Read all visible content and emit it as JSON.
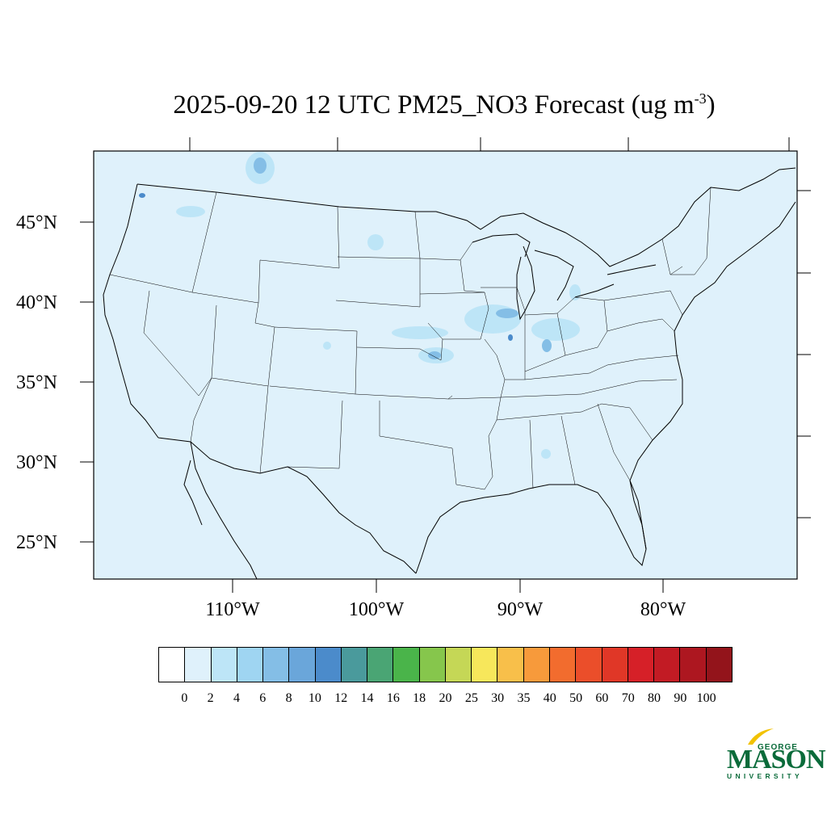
{
  "title": {
    "main": "2025-09-20 12 UTC PM25_NO3 Forecast (ug m",
    "superscript": "-3",
    "close": ")"
  },
  "map": {
    "background_color": "#dff1fb",
    "outline_color": "#000000",
    "lat_labels": [
      "45°N",
      "40°N",
      "35°N",
      "30°N",
      "25°N"
    ],
    "lon_labels": [
      "110°W",
      "100°W",
      "90°W",
      "80°W"
    ]
  },
  "colorbar": {
    "colors": [
      "#ffffff",
      "#dff1fb",
      "#bde5f7",
      "#9fd5f2",
      "#84bee6",
      "#6aa6da",
      "#4b8bcb",
      "#4a9a9c",
      "#4aa574",
      "#4ab44a",
      "#86c64c",
      "#c5d756",
      "#f7e75b",
      "#f8bf4a",
      "#f79a3b",
      "#f26c2e",
      "#eb4e2a",
      "#e03727",
      "#d62028",
      "#c21b24",
      "#ad1720",
      "#93141b"
    ],
    "labels": [
      "0",
      "2",
      "4",
      "6",
      "8",
      "10",
      "12",
      "14",
      "16",
      "18",
      "20",
      "25",
      "30",
      "35",
      "40",
      "50",
      "60",
      "70",
      "80",
      "90",
      "100"
    ]
  },
  "logo": {
    "line1": "GEORGE",
    "line2": "MASON",
    "line3": "UNIVERSITY",
    "color": "#0a6b3a",
    "accent": "#f2c200"
  }
}
